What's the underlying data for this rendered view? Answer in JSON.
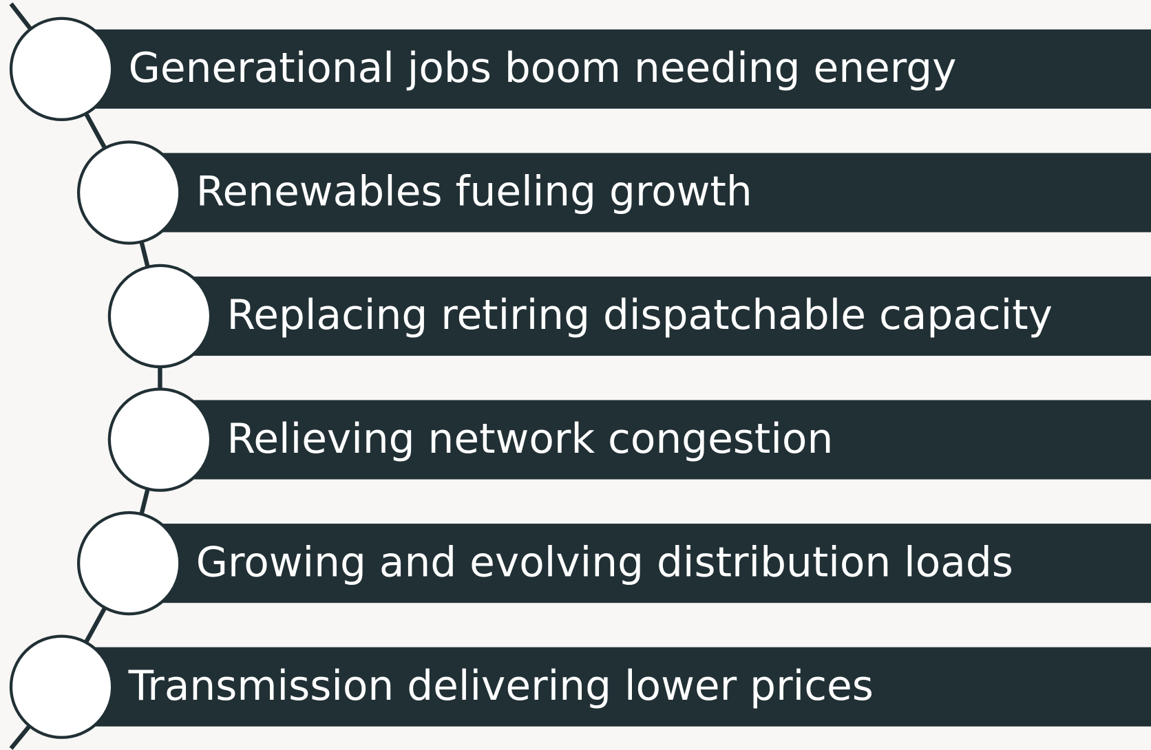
{
  "items": [
    {
      "label": "Generational jobs boom needing energy"
    },
    {
      "label": "Renewables fueling growth"
    },
    {
      "label": "Replacing retiring dispatchable capacity"
    },
    {
      "label": "Relieving network congestion"
    },
    {
      "label": "Growing and evolving distribution loads"
    },
    {
      "label": "Transmission delivering lower prices"
    }
  ]
}
